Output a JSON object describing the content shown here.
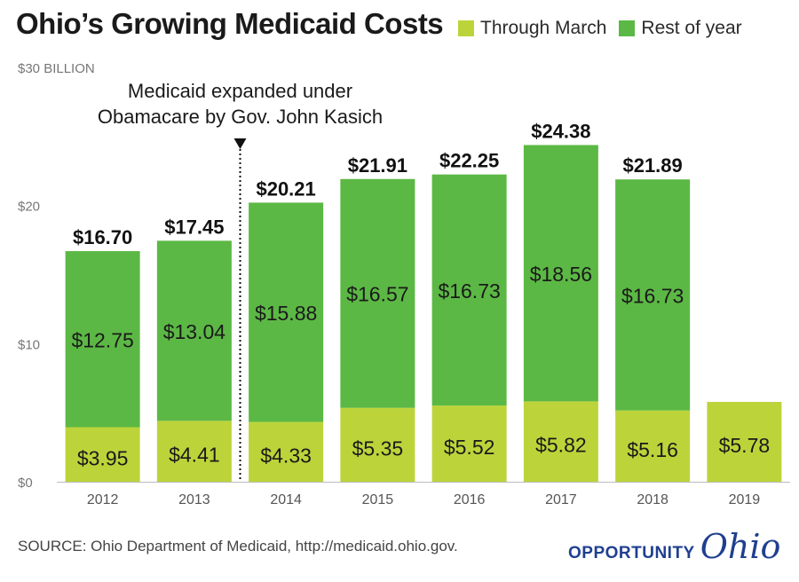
{
  "title": "Ohio’s Growing Medicaid Costs",
  "legend": [
    {
      "label": "Through March",
      "color": "#bcd43a"
    },
    {
      "label": "Rest of year",
      "color": "#5cb845"
    }
  ],
  "annotation": {
    "line1": "Medicaid expanded under",
    "line2": "Obamacare by Gov. John Kasich",
    "after_category": "2013"
  },
  "source": "SOURCE: Ohio Department of Medicaid, http://medicaid.ohio.gov.",
  "logo": {
    "word": "OPPORTUNITY",
    "script": "Ohio"
  },
  "chart_data": {
    "type": "bar",
    "stacked": true,
    "categories": [
      "2012",
      "2013",
      "2014",
      "2015",
      "2016",
      "2017",
      "2018",
      "2019"
    ],
    "series": [
      {
        "name": "Through March",
        "values": [
          3.95,
          4.41,
          4.33,
          5.35,
          5.52,
          5.82,
          5.16,
          5.78
        ],
        "labels": [
          "$3.95",
          "$4.41",
          "$4.33",
          "$5.35",
          "$5.52",
          "$5.82",
          "$5.16",
          "$5.78"
        ]
      },
      {
        "name": "Rest of year",
        "values": [
          12.75,
          13.04,
          15.88,
          16.57,
          16.73,
          18.56,
          16.73,
          null
        ],
        "labels": [
          "$12.75",
          "$13.04",
          "$15.88",
          "$16.57",
          "$16.73",
          "$18.56",
          "$16.73",
          ""
        ]
      }
    ],
    "totals": [
      "$16.70",
      "$17.45",
      "$20.21",
      "$21.91",
      "$22.25",
      "$24.38",
      "$21.89",
      ""
    ],
    "ylim": [
      0,
      30
    ],
    "yticks": [
      0,
      10,
      20,
      30
    ],
    "ytick_labels": [
      "$0",
      "$10",
      "$20",
      "$30 BILLION"
    ],
    "grid": false
  }
}
